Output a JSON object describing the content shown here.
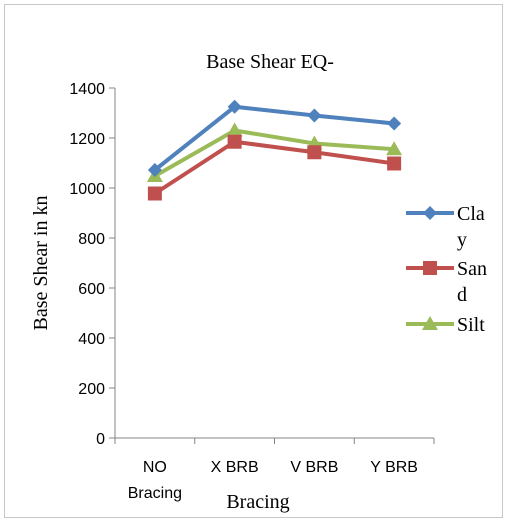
{
  "chart_data": {
    "type": "line",
    "title": "Base Shear EQ-",
    "xlabel": "Bracing",
    "ylabel": "Base Shear in kn",
    "categories": [
      [
        "NO",
        "Bracing"
      ],
      [
        "X BRB"
      ],
      [
        "V BRB"
      ],
      [
        "Y BRB"
      ]
    ],
    "ylim": [
      0,
      1400
    ],
    "yticks": [
      0,
      200,
      400,
      600,
      800,
      1000,
      1200,
      1400
    ],
    "grid": false,
    "legend_position": "right",
    "series": [
      {
        "name": [
          "Cla",
          "y"
        ],
        "values": [
          1072,
          1325,
          1290,
          1258
        ],
        "color": "#4f81bd",
        "marker": "diamond"
      },
      {
        "name": [
          "San",
          "d"
        ],
        "values": [
          978,
          1185,
          1143,
          1098
        ],
        "color": "#c0504d",
        "marker": "square"
      },
      {
        "name": [
          "Silt"
        ],
        "values": [
          1048,
          1230,
          1178,
          1155
        ],
        "color": "#9bbb59",
        "marker": "triangle"
      }
    ]
  }
}
